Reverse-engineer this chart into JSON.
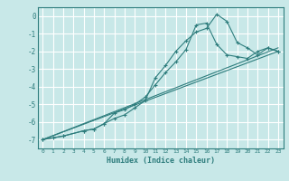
{
  "xlabel": "Humidex (Indice chaleur)",
  "ylabel": "",
  "bg_color": "#c8e8e8",
  "grid_color": "#ffffff",
  "line_color": "#2e7d7d",
  "xlim": [
    -0.5,
    23.5
  ],
  "ylim": [
    -7.5,
    0.5
  ],
  "xticks": [
    0,
    1,
    2,
    3,
    4,
    5,
    6,
    7,
    8,
    9,
    10,
    11,
    12,
    13,
    14,
    15,
    16,
    17,
    18,
    19,
    20,
    21,
    22,
    23
  ],
  "yticks": [
    0,
    -1,
    -2,
    -3,
    -4,
    -5,
    -6,
    -7
  ],
  "series": [
    {
      "x": [
        0,
        1,
        2,
        4,
        5,
        6,
        7,
        8,
        9,
        10,
        11,
        12,
        13,
        14,
        15,
        16,
        17,
        18,
        19,
        20,
        21,
        22,
        23
      ],
      "y": [
        -7.0,
        -6.9,
        -6.8,
        -6.5,
        -6.4,
        -6.1,
        -5.8,
        -5.6,
        -5.2,
        -4.8,
        -3.5,
        -2.8,
        -2.0,
        -1.4,
        -0.9,
        -0.7,
        0.1,
        -0.3,
        -1.5,
        -1.8,
        -2.2,
        -1.8,
        -2.0
      ],
      "marker": "+"
    },
    {
      "x": [
        0,
        2,
        4,
        5,
        6,
        7,
        8,
        9,
        10,
        11,
        12,
        13,
        14,
        15,
        16,
        17,
        18,
        19,
        20,
        21,
        22,
        23
      ],
      "y": [
        -7.0,
        -6.8,
        -6.5,
        -6.4,
        -6.1,
        -5.5,
        -5.3,
        -5.0,
        -4.6,
        -3.9,
        -3.2,
        -2.6,
        -1.9,
        -0.5,
        -0.4,
        -1.6,
        -2.2,
        -2.3,
        -2.4,
        -2.0,
        -1.8,
        -2.0
      ],
      "marker": "+"
    },
    {
      "x": [
        0,
        23
      ],
      "y": [
        -7.0,
        -2.0
      ],
      "marker": null
    },
    {
      "x": [
        0,
        23
      ],
      "y": [
        -7.0,
        -1.8
      ],
      "marker": null
    }
  ]
}
